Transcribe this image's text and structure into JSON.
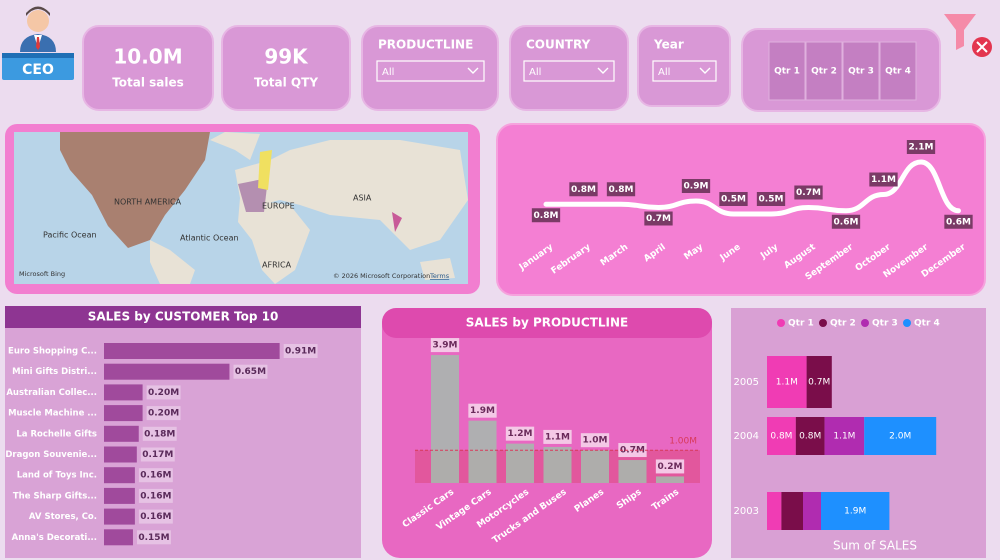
{
  "header": {
    "badge": "CEO"
  },
  "kpis": [
    {
      "value": "10.0M",
      "label": "Total sales"
    },
    {
      "value": "99K",
      "label": "Total QTY"
    }
  ],
  "slicers": [
    {
      "label": "PRODUCTLINE",
      "selection": "All"
    },
    {
      "label": "COUNTRY",
      "selection": "All"
    },
    {
      "label": "Year",
      "selection": "All"
    }
  ],
  "quarter_buttons": [
    "Qtr 1",
    "Qtr 2",
    "Qtr 3",
    "Qtr 4"
  ],
  "map": {
    "labels": [
      "NORTH AMERICA",
      "EUROPE",
      "ASIA",
      "AFRICA",
      "Pacific Ocean",
      "Atlantic Ocean"
    ],
    "attribution": "Microsoft Bing",
    "copyright": "© 2026 Microsoft Corporation",
    "terms": "Terms"
  },
  "chart_data": [
    {
      "type": "line",
      "color": "#ffffff",
      "categories": [
        "January",
        "February",
        "March",
        "April",
        "May",
        "June",
        "July",
        "August",
        "September",
        "October",
        "November",
        "December"
      ],
      "values": [
        0.8,
        0.8,
        0.8,
        0.7,
        0.9,
        0.5,
        0.5,
        0.7,
        0.6,
        1.1,
        2.1,
        0.6
      ],
      "value_labels": [
        "0.8M",
        "0.8M",
        "0.8M",
        "0.7M",
        "0.9M",
        "0.5M",
        "0.5M",
        "0.7M",
        "0.6M",
        "1.1M",
        "2.1M",
        "0.6M"
      ]
    },
    {
      "type": "hbar",
      "title": "SALES by CUSTOMER Top 10",
      "color": "#a04a9c",
      "categories": [
        "Euro Shopping C...",
        "Mini Gifts Distri...",
        "Australian Collec...",
        "Muscle Machine ...",
        "La Rochelle Gifts",
        "Dragon Souvenie...",
        "Land of Toys Inc.",
        "The Sharp Gifts...",
        "AV Stores, Co.",
        "Anna's Decorati..."
      ],
      "values": [
        0.91,
        0.65,
        0.2,
        0.2,
        0.18,
        0.17,
        0.16,
        0.16,
        0.16,
        0.15
      ],
      "value_labels": [
        "0.91M",
        "0.65M",
        "0.20M",
        "0.20M",
        "0.18M",
        "0.17M",
        "0.16M",
        "0.16M",
        "0.16M",
        "0.15M"
      ]
    },
    {
      "type": "bar",
      "title": "SALES by PRODUCTLINE",
      "color": "#a5bcae",
      "categories": [
        "Classic Cars",
        "Vintage Cars",
        "Motorcycles",
        "Trucks and Buses",
        "Planes",
        "Ships",
        "Trains"
      ],
      "values": [
        3.9,
        1.9,
        1.2,
        1.1,
        1.0,
        0.7,
        0.2
      ],
      "value_labels": [
        "3.9M",
        "1.9M",
        "1.2M",
        "1.1M",
        "1.0M",
        "0.7M",
        "0.2M"
      ],
      "reference_line": {
        "value": 1.0,
        "label": "1.00M",
        "color": "#d83a5a"
      }
    },
    {
      "type": "stacked_hbar",
      "x_label": "Sum of SALES",
      "categories": [
        "2005",
        "2004",
        "2003"
      ],
      "series": [
        {
          "name": "Qtr 1",
          "color": "#f03cb4",
          "values": [
            1.1,
            0.8,
            0.4
          ],
          "value_labels": [
            "1.1M",
            "0.8M",
            null
          ]
        },
        {
          "name": "Qtr 2",
          "color": "#7a0d4a",
          "values": [
            0.7,
            0.8,
            0.6
          ],
          "value_labels": [
            "0.7M",
            "0.8M",
            null
          ]
        },
        {
          "name": "Qtr 3",
          "color": "#b02cb0",
          "values": [
            null,
            1.1,
            0.5
          ],
          "value_labels": [
            null,
            "1.1M",
            null
          ]
        },
        {
          "name": "Qtr 4",
          "color": "#1e90ff",
          "values": [
            null,
            2.0,
            1.9
          ],
          "value_labels": [
            null,
            "2.0M",
            "1.9M"
          ]
        }
      ]
    }
  ]
}
